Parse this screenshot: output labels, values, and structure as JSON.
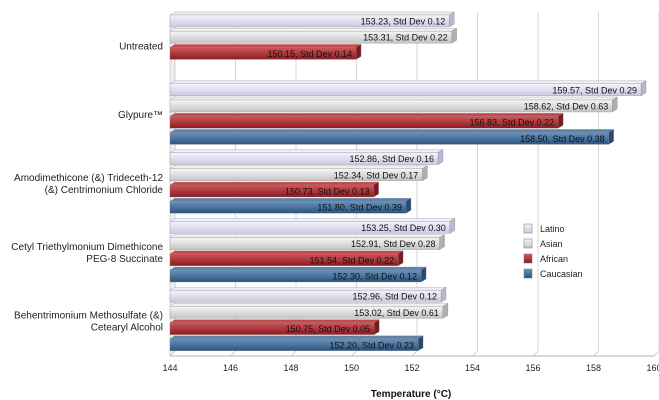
{
  "chart_data": {
    "type": "bar",
    "orientation": "horizontal",
    "title": "",
    "xlabel": "Temperature (°C)",
    "ylabel": "",
    "xlim": [
      144,
      160
    ],
    "xticks": [
      "144",
      "146",
      "148",
      "150",
      "152",
      "154",
      "156",
      "158",
      "160"
    ],
    "grid": true,
    "legend_position": "right",
    "categories": [
      [
        "Untreated"
      ],
      [
        "Glypure™"
      ],
      [
        "Amodimethicone (&) Trideceth-12",
        "(&) Centrimonium Chloride"
      ],
      [
        "Cetyl Triethylmonium Dimethicone",
        "PEG-8 Succinate"
      ],
      [
        "Behentrimonium Methosulfate (&)",
        "Cetearyl Alcohol"
      ]
    ],
    "series": [
      {
        "name": "Latino",
        "color": "#dcdcf0",
        "values": [
          153.23,
          159.57,
          152.86,
          153.25,
          152.96
        ],
        "labels": [
          "153.23, Std Dev 0.12",
          "159.57, Std Dev 0.29",
          "152.86, Std Dev 0.16",
          "153.25, Std Dev 0.30",
          "152.96, Std Dev 0.12"
        ]
      },
      {
        "name": "Asian",
        "color": "#e0e0e0",
        "values": [
          153.31,
          158.62,
          152.34,
          152.91,
          153.02
        ],
        "labels": [
          "153.31, Std Dev 0.22",
          "158.62, Std Dev 0.63",
          "152.34, Std Dev 0.17",
          "152.91, Std Dev 0.28",
          "153.02, Std Dev 0.61"
        ]
      },
      {
        "name": "African",
        "color": "#b03035",
        "values": [
          150.15,
          156.83,
          150.73,
          151.54,
          150.75
        ],
        "labels": [
          "150.15, Std Dev 0.14",
          "156.83, Std Dev 0.22",
          "150.73, Std Dev 0.13",
          "151.54, Std Dev 0.22",
          "150.75, Std Dev 0.05"
        ]
      },
      {
        "name": "Caucasian",
        "color": "#3b6a99",
        "values": [
          null,
          158.5,
          151.8,
          152.3,
          152.2
        ],
        "labels": [
          null,
          "158.50, Std Dev 0.38",
          "151.80, Std Dev 0.39",
          "152.30, Std Dev 0.12",
          "152.20, Std Dev 0.23"
        ]
      }
    ]
  }
}
